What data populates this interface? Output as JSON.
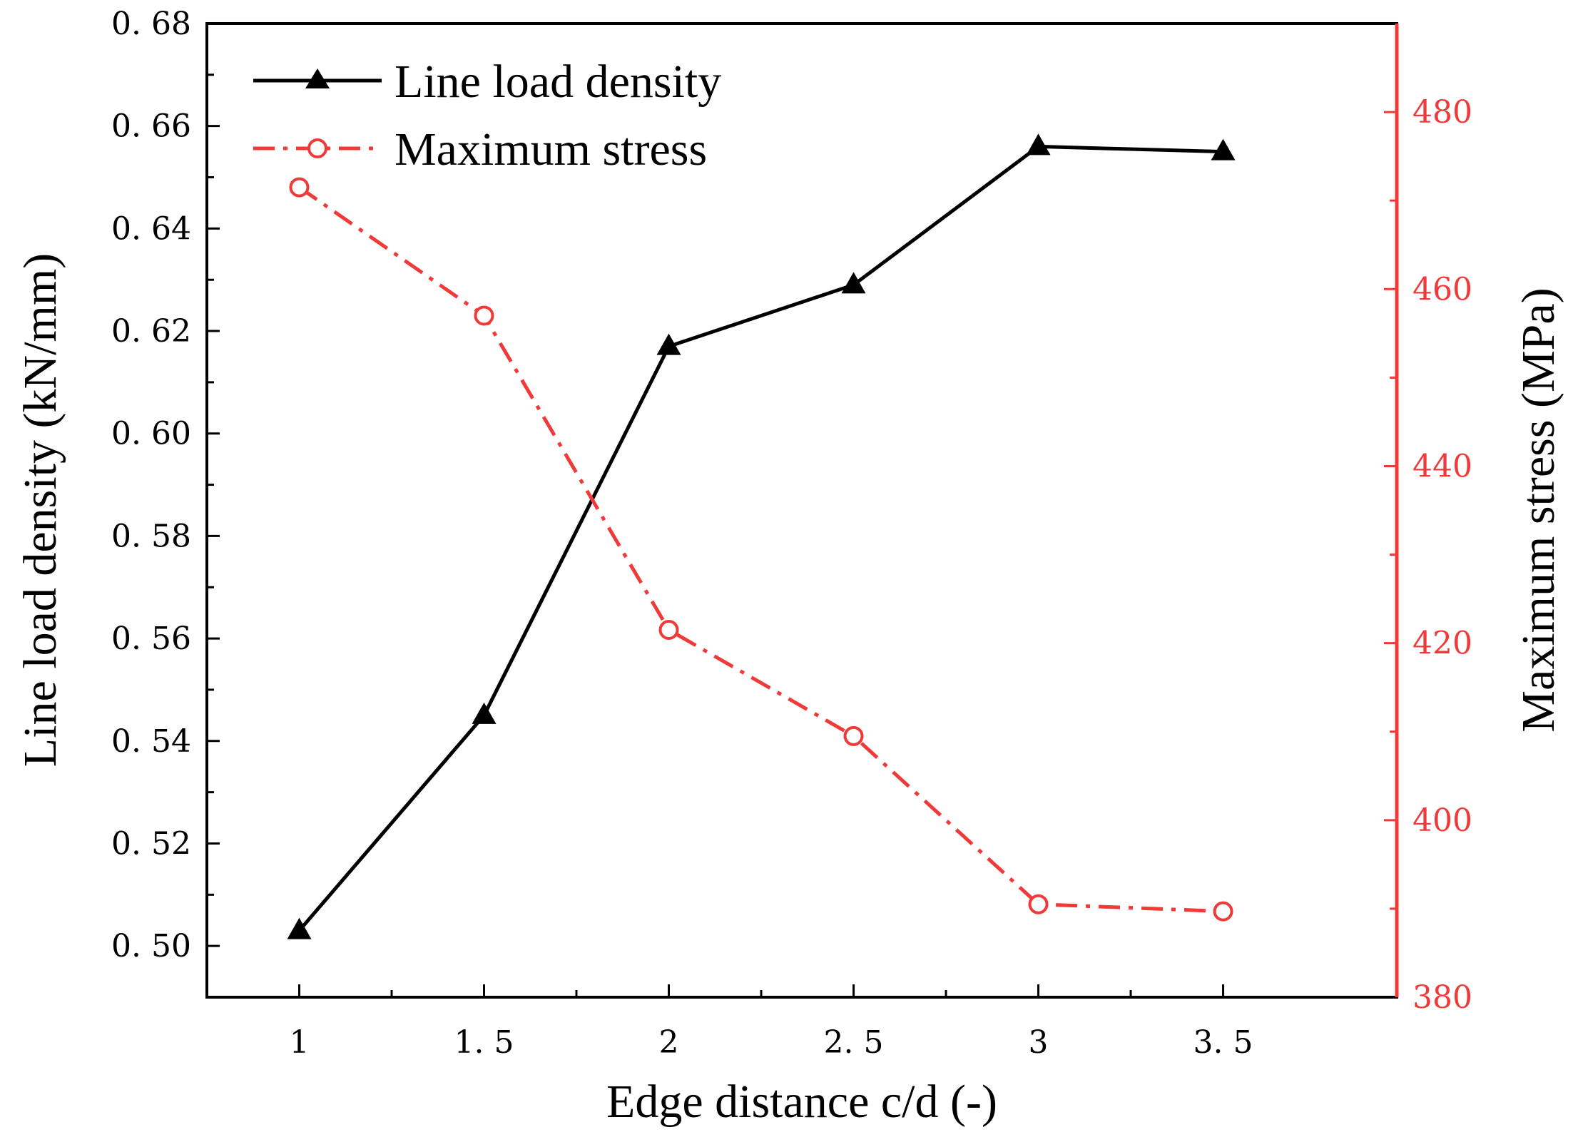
{
  "chart_data": {
    "type": "line",
    "x": [
      1,
      1.5,
      2,
      2.5,
      3,
      3.5
    ],
    "x_tick_labels": [
      "1",
      "1. 5",
      "2",
      "2. 5",
      "3",
      "3. 5"
    ],
    "xlabel": "Edge distance c/d (-)",
    "xlim": [
      0.75,
      3.97
    ],
    "ylabel_left": "Line load density (kN/mm)",
    "ylim_left": [
      0.49,
      0.68
    ],
    "y_left_ticks": [
      0.5,
      0.52,
      0.54,
      0.56,
      0.58,
      0.6,
      0.62,
      0.64,
      0.66,
      0.68
    ],
    "y_left_tick_labels": [
      "0. 50",
      "0. 52",
      "0. 54",
      "0. 56",
      "0. 58",
      "0. 60",
      "0. 62",
      "0. 64",
      "0. 66",
      "0. 68"
    ],
    "ylabel_right": "Maximum stress (MPa)",
    "ylim_right": [
      380,
      490
    ],
    "y_right_ticks": [
      380,
      400,
      420,
      440,
      460,
      480
    ],
    "y_right_tick_labels": [
      "380",
      "400",
      "420",
      "440",
      "460",
      "480"
    ],
    "series": [
      {
        "name": "Line load density",
        "axis": "left",
        "values": [
          0.503,
          0.545,
          0.617,
          0.629,
          0.656,
          0.655
        ],
        "color": "#000000",
        "marker": "triangle",
        "line_style": "solid"
      },
      {
        "name": "Maximum stress",
        "axis": "right",
        "values": [
          471.5,
          457.0,
          421.5,
          409.5,
          390.5,
          389.7
        ],
        "color": "#f03a3a",
        "marker": "open-circle",
        "line_style": "dash-dot"
      }
    ],
    "legend_position": "top-left",
    "grid": false
  }
}
